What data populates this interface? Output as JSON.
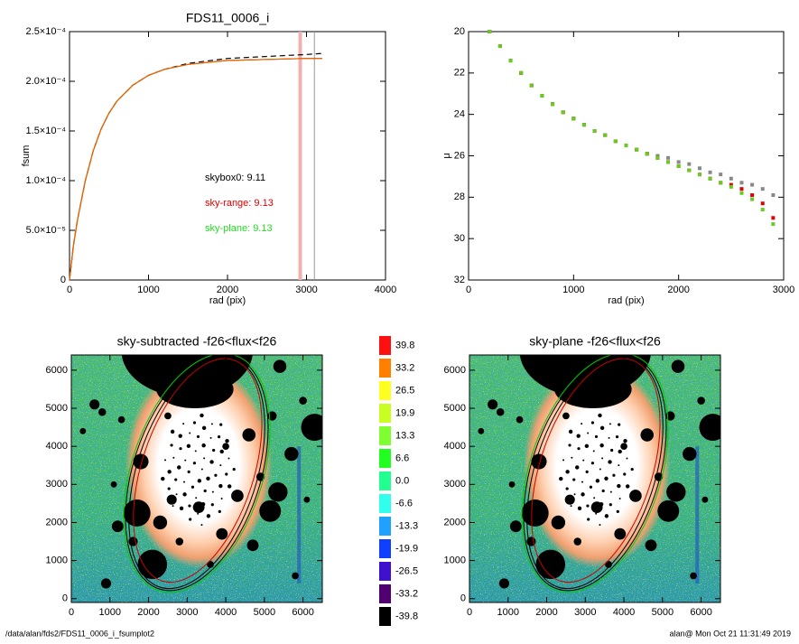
{
  "chart_data": [
    {
      "type": "line",
      "title": "FDS11_0006_i",
      "x_label": "rad (pix)",
      "y_label": "fsum",
      "xlim": [
        0,
        4000
      ],
      "xticks": [
        0,
        1000,
        2000,
        3000,
        4000
      ],
      "ylim": [
        0,
        0.00025
      ],
      "yticks": [
        0,
        {
          "value": 5e-05,
          "label": "5.0×10⁻⁵"
        },
        {
          "value": 0.0001,
          "label": "1.0×10⁻⁴"
        },
        {
          "value": 0.00015,
          "label": "1.5×10⁻⁴"
        },
        {
          "value": 0.0002,
          "label": "2.0×10⁻⁴"
        },
        {
          "value": 0.00025,
          "label": "2.5×10⁻⁴"
        }
      ],
      "x": [
        0,
        50,
        100,
        200,
        300,
        400,
        500,
        600,
        800,
        1000,
        1200,
        1500,
        2000,
        2500,
        3000,
        3200
      ],
      "series": [
        {
          "color": "#000000",
          "style": "dashed",
          "values": [
            0,
            3.5e-05,
            6e-05,
            0.0001,
            0.00013,
            0.000152,
            0.000168,
            0.00018,
            0.000196,
            0.000206,
            0.000212,
            0.000218,
            0.000223,
            0.000225,
            0.000227,
            0.000228
          ]
        },
        {
          "color": "#e00000",
          "style": "solid",
          "values": [
            0,
            3.5e-05,
            6e-05,
            0.0001,
            0.00013,
            0.000152,
            0.000168,
            0.00018,
            0.000196,
            0.000206,
            0.000212,
            0.000217,
            0.000221,
            0.000222,
            0.000223,
            0.000223
          ]
        },
        {
          "color": "#e07000",
          "style": "solid",
          "values": [
            0,
            3.5e-05,
            6e-05,
            0.0001,
            0.00013,
            0.000152,
            0.000168,
            0.00018,
            0.000196,
            0.000206,
            0.000212,
            0.000217,
            0.000221,
            0.000222,
            0.000223,
            0.000223
          ]
        }
      ],
      "vlines": [
        {
          "x": 2920,
          "color": "#f0b0b0"
        },
        {
          "x": 3100,
          "color": "#999999"
        }
      ],
      "annotations": [
        {
          "text": "skybox0:  9.11",
          "color": "#000000"
        },
        {
          "text": "sky-range:  9.13",
          "color": "#e00000"
        },
        {
          "text": "sky-plane:  9.13",
          "color": "#22dd22"
        }
      ]
    },
    {
      "type": "scatter",
      "x_label": "rad (pix)",
      "y_label": "μ",
      "xlim": [
        0,
        3000
      ],
      "xticks": [
        0,
        1000,
        2000,
        3000
      ],
      "ylim": [
        32,
        20
      ],
      "yticks": [
        20,
        22,
        24,
        26,
        28,
        30,
        32
      ],
      "x": [
        200,
        300,
        400,
        500,
        600,
        700,
        800,
        900,
        1000,
        1100,
        1200,
        1300,
        1400,
        1500,
        1600,
        1700,
        1800,
        1900,
        2000,
        2100,
        2200,
        2300,
        2400,
        2500,
        2600,
        2700,
        2800,
        2900
      ],
      "series": [
        {
          "color": "#888888",
          "values": [
            20.0,
            20.7,
            21.4,
            22.0,
            22.6,
            23.1,
            23.5,
            23.9,
            24.2,
            24.5,
            24.8,
            25.0,
            25.3,
            25.5,
            25.7,
            25.9,
            26.0,
            26.1,
            26.3,
            26.4,
            26.6,
            26.8,
            26.9,
            27.1,
            27.3,
            27.4,
            27.6,
            27.9
          ]
        },
        {
          "color": "#e00000",
          "values": [
            20.0,
            20.7,
            21.4,
            22.0,
            22.6,
            23.1,
            23.5,
            23.9,
            24.2,
            24.5,
            24.8,
            25.0,
            25.3,
            25.5,
            25.7,
            25.9,
            26.1,
            26.3,
            26.5,
            26.7,
            26.9,
            27.1,
            27.3,
            27.4,
            27.6,
            27.9,
            28.3,
            29.0
          ]
        },
        {
          "color": "#66cc22",
          "values": [
            20.0,
            20.7,
            21.4,
            22.0,
            22.6,
            23.1,
            23.5,
            23.9,
            24.2,
            24.5,
            24.8,
            25.0,
            25.3,
            25.5,
            25.7,
            25.9,
            26.1,
            26.3,
            26.5,
            26.7,
            26.9,
            27.1,
            27.3,
            27.5,
            27.8,
            28.1,
            28.6,
            29.3
          ]
        }
      ]
    },
    {
      "type": "image",
      "title": "sky-subtracted -f26<flux<f26",
      "xlim": [
        0,
        6500
      ],
      "xticks": [
        0,
        1000,
        2000,
        3000,
        4000,
        5000,
        6000
      ],
      "ylim": [
        -100,
        6400
      ],
      "yticks": [
        0,
        1000,
        2000,
        3000,
        4000,
        5000,
        6000
      ]
    },
    {
      "type": "image",
      "title": "sky-plane -f26<flux<f26",
      "xlim": [
        0,
        6500
      ],
      "xticks": [
        0,
        1000,
        2000,
        3000,
        4000,
        5000,
        6000
      ],
      "ylim": [
        -100,
        6400
      ],
      "yticks": [
        0,
        1000,
        2000,
        3000,
        4000,
        5000,
        6000
      ]
    }
  ],
  "colorbar": {
    "levels": [
      39.8,
      33.2,
      26.5,
      19.9,
      13.3,
      6.6,
      {
        "value": 0,
        "label": "0.0"
      },
      -6.6,
      -13.3,
      -19.9,
      -26.5,
      -33.2,
      -39.8
    ],
    "colors": [
      "#ff1010",
      "#ff8000",
      "#ffff20",
      "#c8ff20",
      "#80ff30",
      "#20ff20",
      "#20ff90",
      "#30ffee",
      "#20a0ff",
      "#1040ff",
      "#4010d0",
      "#500070",
      "#000000"
    ]
  },
  "footer": {
    "left": "/data/alan/fds2/FDS11_0006_i_fsumplot2",
    "right": "alan@  Mon Oct 21 11:31:49 2019"
  }
}
